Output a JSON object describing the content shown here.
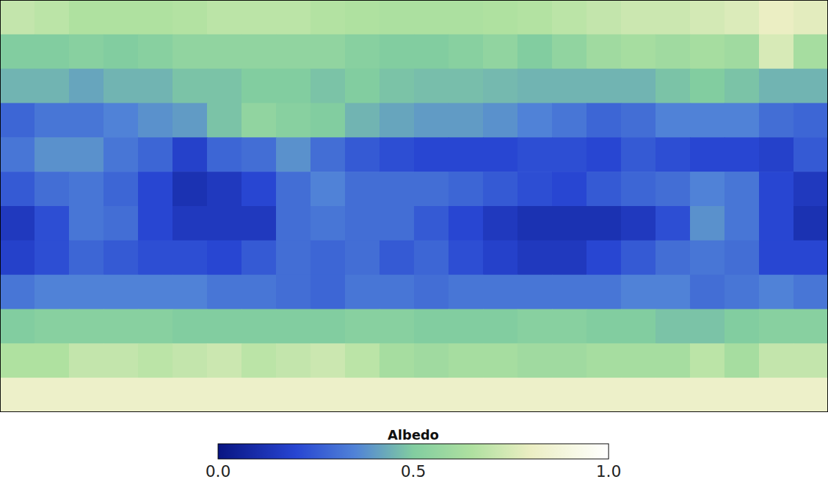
{
  "chart_data": {
    "type": "heatmap",
    "tick_labels": false,
    "xlim": [
      -20,
      340
    ],
    "ylim": [
      -90,
      90
    ],
    "x": [
      -12.5,
      2.5,
      17.5,
      32.5,
      47.5,
      62.5,
      77.5,
      92.5,
      107.5,
      122.5,
      137.5,
      152.5,
      167.5,
      182.5,
      197.5,
      212.5,
      227.5,
      242.5,
      257.5,
      272.5,
      287.5,
      302.5,
      317.5,
      332.5
    ],
    "y": [
      82.5,
      67.5,
      52.5,
      37.5,
      22.5,
      7.5,
      -7.5,
      -22.5,
      -37.5,
      -52.5,
      -67.5,
      -82.5
    ],
    "values": [
      [
        0.7,
        0.68,
        0.65,
        0.65,
        0.65,
        0.66,
        0.68,
        0.68,
        0.68,
        0.66,
        0.65,
        0.64,
        0.64,
        0.64,
        0.65,
        0.66,
        0.68,
        0.7,
        0.72,
        0.72,
        0.74,
        0.76,
        0.8,
        0.78
      ],
      [
        0.5,
        0.5,
        0.52,
        0.5,
        0.52,
        0.55,
        0.55,
        0.55,
        0.55,
        0.55,
        0.52,
        0.5,
        0.5,
        0.52,
        0.55,
        0.5,
        0.55,
        0.6,
        0.62,
        0.6,
        0.62,
        0.6,
        0.75,
        0.62
      ],
      [
        0.45,
        0.45,
        0.42,
        0.45,
        0.45,
        0.48,
        0.48,
        0.5,
        0.5,
        0.48,
        0.5,
        0.48,
        0.47,
        0.47,
        0.46,
        0.45,
        0.45,
        0.45,
        0.45,
        0.48,
        0.5,
        0.48,
        0.45,
        0.45
      ],
      [
        0.28,
        0.32,
        0.32,
        0.35,
        0.38,
        0.4,
        0.48,
        0.55,
        0.52,
        0.5,
        0.45,
        0.42,
        0.4,
        0.4,
        0.38,
        0.35,
        0.32,
        0.28,
        0.3,
        0.35,
        0.35,
        0.35,
        0.3,
        0.28
      ],
      [
        0.32,
        0.38,
        0.38,
        0.32,
        0.28,
        0.18,
        0.28,
        0.3,
        0.38,
        0.3,
        0.25,
        0.22,
        0.2,
        0.2,
        0.2,
        0.22,
        0.22,
        0.2,
        0.25,
        0.22,
        0.2,
        0.2,
        0.18,
        0.25
      ],
      [
        0.25,
        0.3,
        0.32,
        0.28,
        0.2,
        0.12,
        0.15,
        0.2,
        0.3,
        0.35,
        0.3,
        0.3,
        0.3,
        0.28,
        0.25,
        0.22,
        0.2,
        0.25,
        0.28,
        0.3,
        0.35,
        0.32,
        0.2,
        0.15
      ],
      [
        0.15,
        0.22,
        0.32,
        0.3,
        0.2,
        0.15,
        0.15,
        0.15,
        0.3,
        0.32,
        0.3,
        0.3,
        0.25,
        0.2,
        0.15,
        0.12,
        0.12,
        0.12,
        0.15,
        0.22,
        0.38,
        0.32,
        0.2,
        0.12
      ],
      [
        0.18,
        0.22,
        0.28,
        0.25,
        0.22,
        0.22,
        0.2,
        0.25,
        0.3,
        0.28,
        0.3,
        0.25,
        0.28,
        0.22,
        0.18,
        0.15,
        0.15,
        0.2,
        0.25,
        0.3,
        0.32,
        0.3,
        0.2,
        0.2
      ],
      [
        0.32,
        0.35,
        0.35,
        0.35,
        0.35,
        0.35,
        0.32,
        0.32,
        0.3,
        0.28,
        0.32,
        0.32,
        0.3,
        0.32,
        0.32,
        0.32,
        0.32,
        0.32,
        0.35,
        0.35,
        0.3,
        0.32,
        0.35,
        0.32
      ],
      [
        0.5,
        0.52,
        0.52,
        0.52,
        0.52,
        0.5,
        0.5,
        0.5,
        0.5,
        0.5,
        0.52,
        0.52,
        0.5,
        0.5,
        0.5,
        0.52,
        0.52,
        0.5,
        0.5,
        0.48,
        0.48,
        0.5,
        0.52,
        0.52
      ],
      [
        0.65,
        0.65,
        0.7,
        0.7,
        0.68,
        0.7,
        0.72,
        0.68,
        0.7,
        0.72,
        0.68,
        0.62,
        0.6,
        0.62,
        0.62,
        0.6,
        0.6,
        0.62,
        0.62,
        0.62,
        0.68,
        0.62,
        0.7,
        0.7
      ],
      [
        0.82,
        0.82,
        0.82,
        0.82,
        0.82,
        0.82,
        0.82,
        0.82,
        0.82,
        0.82,
        0.82,
        0.82,
        0.82,
        0.82,
        0.82,
        0.82,
        0.82,
        0.82,
        0.82,
        0.82,
        0.82,
        0.82,
        0.82,
        0.82
      ]
    ],
    "colorbar": {
      "label": "Albedo",
      "range": [
        0,
        1
      ],
      "ticks": [
        {
          "value": 0,
          "label": "0.0"
        },
        {
          "value": 0.5,
          "label": "0.5"
        },
        {
          "value": 1,
          "label": "1.0"
        }
      ]
    }
  }
}
